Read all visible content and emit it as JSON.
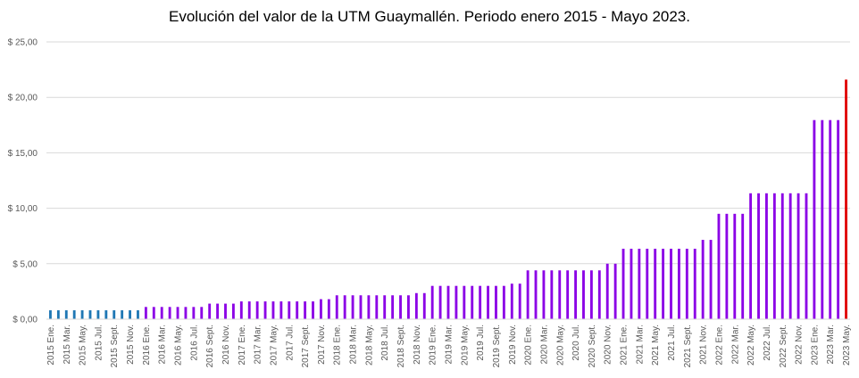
{
  "chart_data": {
    "type": "bar",
    "title": "Evolución del valor de la UTM Guaymallén. Periodo enero 2015 - Mayo 2023.",
    "xlabel": "",
    "ylabel": "",
    "ylim": [
      0,
      25
    ],
    "yticks": [
      "$ 0,00",
      "$ 5,00",
      "$ 10,00",
      "$ 15,00",
      "$ 20,00",
      "$ 25,00"
    ],
    "grid": true,
    "colors": {
      "2015": "#1f77b4",
      "2016_2023": "#8b00e6",
      "last": "#e00000"
    },
    "categories": [
      "2015 Ene.",
      "",
      "2015 Mar.",
      "",
      "2015 May.",
      "",
      "2015 Jul.",
      "",
      "2015 Sept.",
      "",
      "2015 Nov.",
      "",
      "2016 Ene.",
      "",
      "2016 Mar.",
      "",
      "2016 May.",
      "",
      "2016 Jul.",
      "",
      "2016 Sept.",
      "",
      "2016 Nov.",
      "",
      "2017 Ene.",
      "",
      "2017 Mar.",
      "",
      "2017 May.",
      "",
      "2017 Jul.",
      "",
      "2017 Sept.",
      "",
      "2017 Nov.",
      "",
      "2018 Ene.",
      "",
      "2018 Mar.",
      "",
      "2018 May.",
      "",
      "2018 Jul.",
      "",
      "2018 Sept.",
      "",
      "2018 Nov.",
      "",
      "2019 Ene.",
      "",
      "2019 Mar.",
      "",
      "2019 May.",
      "",
      "2019 Jul.",
      "",
      "2019 Sept.",
      "",
      "2019 Nov.",
      "",
      "2020 Ene.",
      "",
      "2020 Mar.",
      "",
      "2020 May.",
      "",
      "2020 Jul.",
      "",
      "2020 Sept.",
      "",
      "2020 Nov.",
      "",
      "2021 Ene.",
      "",
      "2021 Mar.",
      "",
      "2021 May.",
      "",
      "2021 Jul.",
      "",
      "2021 Sept.",
      "",
      "2021 Nov.",
      "",
      "2022 Ene.",
      "",
      "2022 Mar.",
      "",
      "2022 May.",
      "",
      "2022 Jul.",
      "",
      "2022 Sept.",
      "",
      "2022 Nov.",
      "",
      "2023 Ene.",
      "",
      "2023 Mar.",
      "",
      "2023 May."
    ],
    "values": [
      0.8,
      0.8,
      0.8,
      0.8,
      0.8,
      0.8,
      0.8,
      0.8,
      0.8,
      0.8,
      0.8,
      0.8,
      1.1,
      1.1,
      1.1,
      1.1,
      1.1,
      1.1,
      1.1,
      1.1,
      1.4,
      1.4,
      1.4,
      1.4,
      1.6,
      1.6,
      1.6,
      1.6,
      1.6,
      1.6,
      1.6,
      1.6,
      1.6,
      1.6,
      1.8,
      1.8,
      2.15,
      2.15,
      2.15,
      2.15,
      2.15,
      2.15,
      2.15,
      2.15,
      2.15,
      2.15,
      2.35,
      2.35,
      3.0,
      3.0,
      3.0,
      3.0,
      3.0,
      3.0,
      3.0,
      3.0,
      3.0,
      3.0,
      3.2,
      3.2,
      4.4,
      4.4,
      4.4,
      4.4,
      4.4,
      4.4,
      4.4,
      4.4,
      4.4,
      4.4,
      5.0,
      5.0,
      6.35,
      6.35,
      6.35,
      6.35,
      6.35,
      6.35,
      6.35,
      6.35,
      6.35,
      6.35,
      7.15,
      7.15,
      9.5,
      9.5,
      9.5,
      9.5,
      11.35,
      11.35,
      11.35,
      11.35,
      11.35,
      11.35,
      11.35,
      11.35,
      17.95,
      17.95,
      17.95,
      17.95,
      21.6
    ]
  }
}
